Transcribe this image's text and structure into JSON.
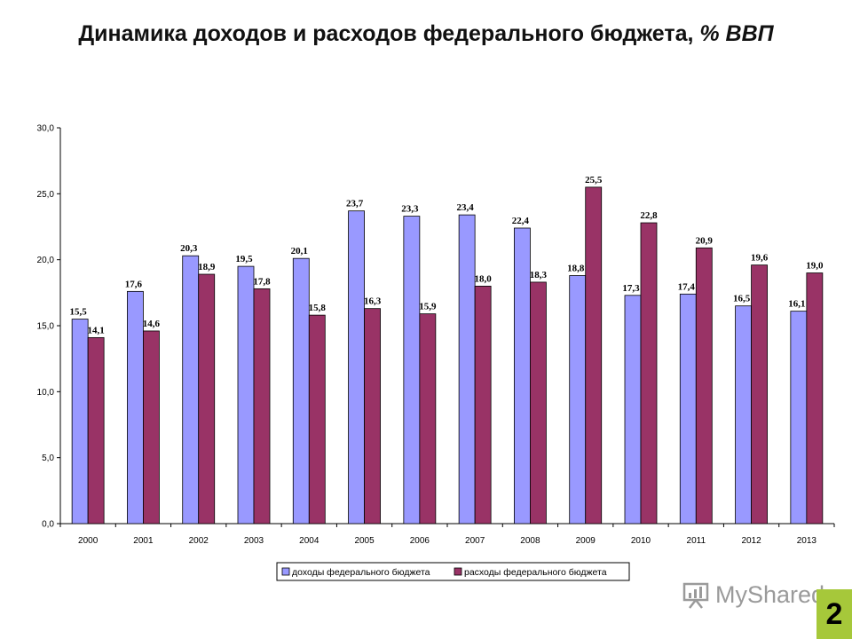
{
  "title": {
    "main": "Динамика доходов и расходов федерального бюджета,",
    "unit": "% ВВП"
  },
  "chart_data": {
    "type": "bar",
    "categories": [
      "2000",
      "2001",
      "2002",
      "2003",
      "2004",
      "2005",
      "2006",
      "2007",
      "2008",
      "2009",
      "2010",
      "2011",
      "2012",
      "2013"
    ],
    "series": [
      {
        "name": "доходы федерального бюджета",
        "color": "#9999ff",
        "values": [
          15.5,
          17.6,
          20.3,
          19.5,
          20.1,
          23.7,
          23.3,
          23.4,
          22.4,
          18.8,
          17.3,
          17.4,
          16.5,
          16.1
        ],
        "labels": [
          "15,5",
          "17,6",
          "20,3",
          "19,5",
          "20,1",
          "23,7",
          "23,3",
          "23,4",
          "22,4",
          "18,8",
          "17,3",
          "17,4",
          "16,5",
          "16,1"
        ]
      },
      {
        "name": "расходы федерального бюджета",
        "color": "#993366",
        "values": [
          14.1,
          14.6,
          18.9,
          17.8,
          15.8,
          16.3,
          15.9,
          18.0,
          18.3,
          25.5,
          22.8,
          20.9,
          19.6,
          19.0
        ],
        "labels": [
          "14,1",
          "14,6",
          "18,9",
          "17,8",
          "15,8",
          "16,3",
          "15,9",
          "18,0",
          "18,3",
          "25,5",
          "22,8",
          "20,9",
          "19,6",
          "19,0"
        ]
      }
    ],
    "yticks": [
      0,
      5,
      10,
      15,
      20,
      25,
      30
    ],
    "ytick_labels": [
      "0,0",
      "5,0",
      "10,0",
      "15,0",
      "20,0",
      "25,0",
      "30,0"
    ],
    "ylim": [
      0,
      30
    ],
    "grid": false,
    "legend_position": "bottom"
  },
  "watermark": {
    "text": "MyShared"
  },
  "page_badge": {
    "number": "2"
  }
}
